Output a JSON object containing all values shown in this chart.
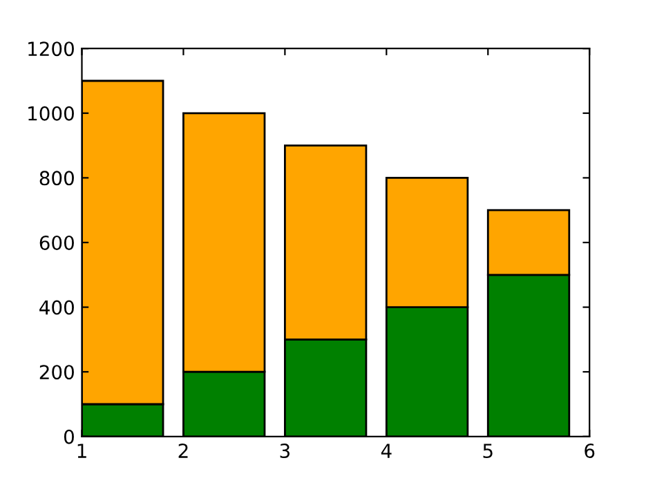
{
  "chart_data": {
    "type": "bar",
    "stacked": true,
    "x": [
      1.4,
      2.4,
      3.4,
      4.4,
      5.4
    ],
    "series": [
      {
        "color": "#008000",
        "values": [
          100,
          200,
          300,
          400,
          500
        ]
      },
      {
        "color": "#ffa500",
        "values": [
          1000,
          800,
          600,
          400,
          200
        ]
      }
    ],
    "xlim": [
      1,
      6
    ],
    "xticks": [
      1,
      2,
      3,
      4,
      5,
      6
    ],
    "ylim": [
      0,
      1200
    ],
    "yticks": [
      0,
      200,
      400,
      600,
      800,
      1000,
      1200
    ],
    "grid": false
  }
}
